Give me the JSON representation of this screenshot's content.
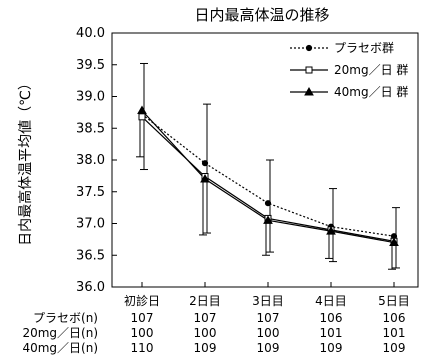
{
  "chart_data": {
    "type": "line",
    "title": "日内最高体温の推移",
    "xlabel": "",
    "ylabel": "日内最高体温平均値（℃）",
    "ylim": [
      36.0,
      40.0
    ],
    "yticks": [
      "36.0",
      "36.5",
      "37.0",
      "37.5",
      "38.0",
      "38.5",
      "39.0",
      "39.5",
      "40.0"
    ],
    "categories": [
      "初診日",
      "2日目",
      "3日目",
      "4日目",
      "5日目"
    ],
    "grid": false,
    "legend_position": "top-right",
    "series": [
      {
        "name": "プラセボ群",
        "style": "dotted",
        "marker": "filled-circle",
        "color": "#000000",
        "values": [
          38.72,
          37.95,
          37.32,
          36.95,
          36.8
        ],
        "error_high": [
          39.52,
          38.88,
          38.0,
          37.55,
          37.25
        ],
        "error_low": [
          37.85,
          36.85,
          36.55,
          36.4,
          36.3
        ]
      },
      {
        "name": "20mg／日 群",
        "style": "solid",
        "marker": "open-square",
        "color": "#000000",
        "values": [
          38.68,
          37.74,
          37.08,
          36.9,
          36.72
        ],
        "error_high": [],
        "error_low": []
      },
      {
        "name": "40mg／日 群",
        "style": "solid",
        "marker": "filled-triangle",
        "color": "#000000",
        "values": [
          38.78,
          37.7,
          37.05,
          36.88,
          36.7
        ],
        "error_high": [],
        "error_low": [
          38.05,
          36.82,
          36.5,
          36.45,
          36.28
        ]
      }
    ],
    "n_table": {
      "rows": [
        {
          "label": "プラセボ(n)",
          "values": [
            "107",
            "107",
            "107",
            "106",
            "106"
          ]
        },
        {
          "label": "20mg／日(n)",
          "values": [
            "100",
            "100",
            "100",
            "101",
            "101"
          ]
        },
        {
          "label": "40mg／日(n)",
          "values": [
            "110",
            "109",
            "109",
            "109",
            "109"
          ]
        }
      ]
    }
  }
}
